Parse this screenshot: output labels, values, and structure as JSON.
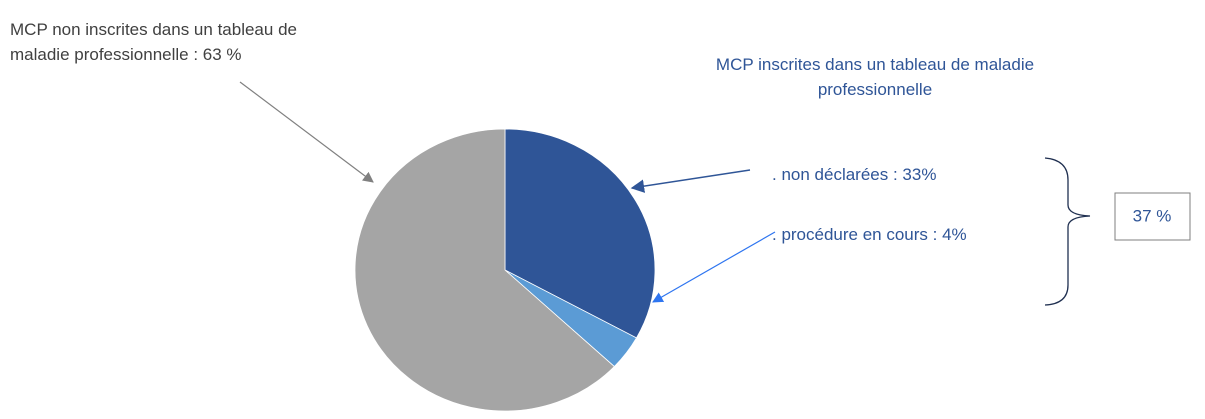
{
  "chart_data": {
    "type": "pie",
    "annotation": "MCP inscrites dans un tableau de maladie professionnelle",
    "total_label": "37 %",
    "series": [
      {
        "values": [
          33,
          4,
          63
        ],
        "value_labels": [
          ". non déclarées : 33%",
          ". procédure en cours : 4%",
          "MCP non inscrites dans un tableau de maladie professionnelle : 63 %"
        ],
        "colors": [
          "#2f5597",
          "#5b9bd5",
          "#a5a5a5"
        ]
      }
    ]
  }
}
